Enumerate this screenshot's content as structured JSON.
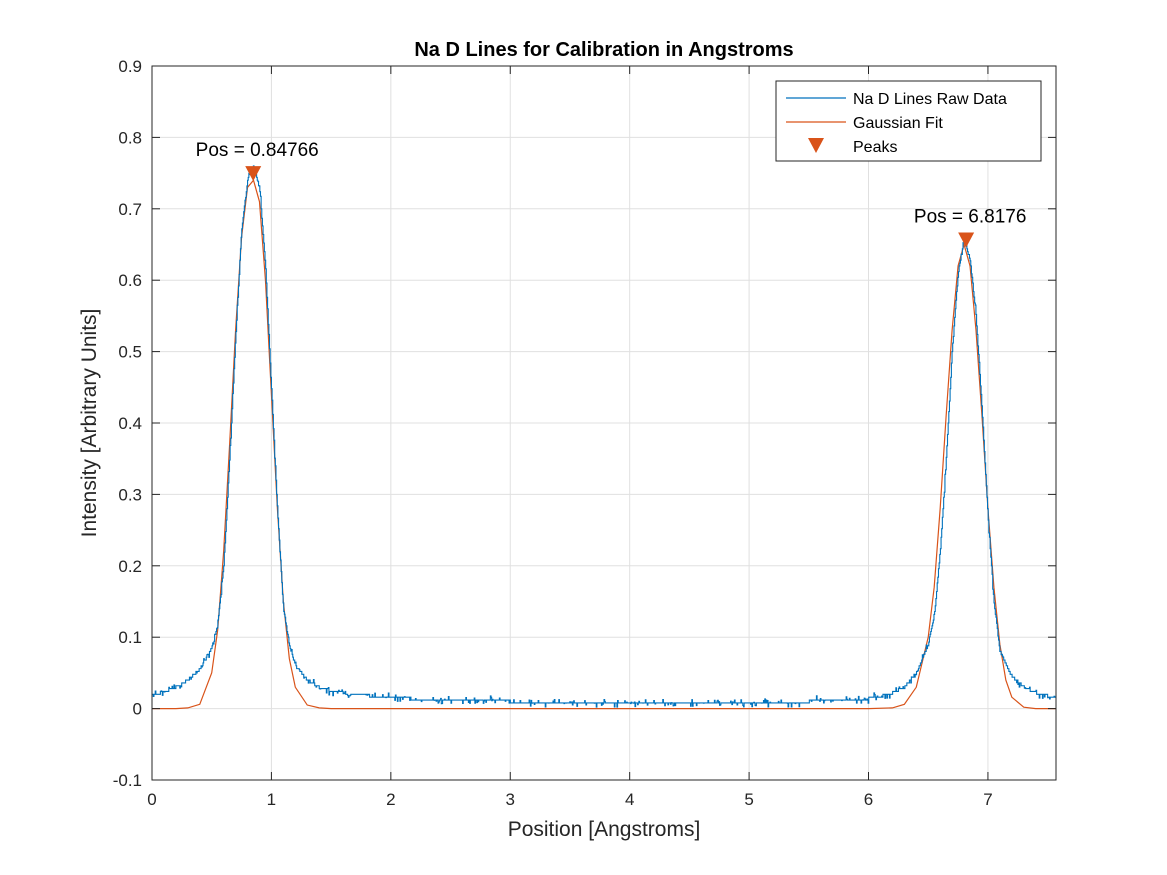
{
  "chart_data": {
    "type": "line",
    "title": "Na D Lines for Calibration in Angstroms",
    "xlabel": "Position [Angstroms]",
    "ylabel": "Intensity [Arbitrary Units]",
    "xlim": [
      0,
      7.57
    ],
    "ylim": [
      -0.1,
      0.9
    ],
    "xticks": [
      0,
      1,
      2,
      3,
      4,
      5,
      6,
      7
    ],
    "yticks": [
      -0.1,
      0,
      0.1,
      0.2,
      0.3,
      0.4,
      0.5,
      0.6,
      0.7,
      0.8,
      0.9
    ],
    "grid": true,
    "legend_position": "top-right",
    "series": [
      {
        "name": "Na D Lines Raw Data",
        "color": "#0072bd",
        "x": [
          0,
          0.1,
          0.2,
          0.3,
          0.4,
          0.5,
          0.55,
          0.6,
          0.65,
          0.7,
          0.75,
          0.8,
          0.85,
          0.9,
          0.95,
          1.0,
          1.05,
          1.1,
          1.15,
          1.2,
          1.3,
          1.4,
          1.5,
          1.7,
          2.0,
          2.5,
          3.0,
          3.5,
          4.0,
          4.5,
          5.0,
          5.5,
          5.8,
          6.0,
          6.1,
          6.2,
          6.3,
          6.4,
          6.5,
          6.55,
          6.6,
          6.65,
          6.7,
          6.75,
          6.8,
          6.85,
          6.9,
          6.95,
          7.0,
          7.05,
          7.1,
          7.2,
          7.3,
          7.4,
          7.5,
          7.57
        ],
        "y": [
          0.02,
          0.023,
          0.03,
          0.04,
          0.055,
          0.085,
          0.12,
          0.2,
          0.35,
          0.52,
          0.67,
          0.74,
          0.76,
          0.73,
          0.62,
          0.45,
          0.28,
          0.14,
          0.09,
          0.06,
          0.04,
          0.03,
          0.025,
          0.02,
          0.015,
          0.012,
          0.01,
          0.009,
          0.009,
          0.009,
          0.009,
          0.01,
          0.011,
          0.014,
          0.017,
          0.022,
          0.03,
          0.05,
          0.09,
          0.13,
          0.22,
          0.35,
          0.5,
          0.61,
          0.655,
          0.63,
          0.55,
          0.42,
          0.27,
          0.15,
          0.08,
          0.045,
          0.03,
          0.022,
          0.018,
          0.017
        ]
      },
      {
        "name": "Gaussian Fit",
        "color": "#d95319",
        "x": [
          0,
          0.1,
          0.2,
          0.3,
          0.4,
          0.5,
          0.55,
          0.6,
          0.65,
          0.7,
          0.75,
          0.8,
          0.85,
          0.9,
          0.95,
          1.0,
          1.05,
          1.1,
          1.15,
          1.2,
          1.3,
          1.4,
          1.5,
          2.0,
          3.0,
          4.0,
          5.0,
          6.0,
          6.2,
          6.3,
          6.4,
          6.5,
          6.55,
          6.6,
          6.65,
          6.7,
          6.75,
          6.8,
          6.85,
          6.9,
          6.95,
          7.0,
          7.05,
          7.1,
          7.15,
          7.2,
          7.3,
          7.4,
          7.57
        ],
        "y": [
          0,
          0,
          0,
          0.001,
          0.006,
          0.05,
          0.11,
          0.22,
          0.37,
          0.53,
          0.66,
          0.73,
          0.74,
          0.71,
          0.6,
          0.44,
          0.28,
          0.15,
          0.07,
          0.03,
          0.005,
          0.001,
          0,
          0,
          0,
          0,
          0,
          0,
          0.001,
          0.006,
          0.03,
          0.1,
          0.17,
          0.28,
          0.41,
          0.53,
          0.62,
          0.65,
          0.62,
          0.53,
          0.41,
          0.28,
          0.17,
          0.09,
          0.04,
          0.016,
          0.002,
          0,
          0
        ]
      },
      {
        "name": "Peaks",
        "color": "#d95319",
        "marker": "triangle-down",
        "x": [
          0.84766,
          6.8176
        ],
        "y": [
          0.75,
          0.657
        ]
      }
    ],
    "annotations": [
      {
        "text": "Pos = 0.84766",
        "x": 0.84766,
        "y": 0.75
      },
      {
        "text": "Pos =  6.8176",
        "x": 6.8176,
        "y": 0.657
      }
    ]
  }
}
